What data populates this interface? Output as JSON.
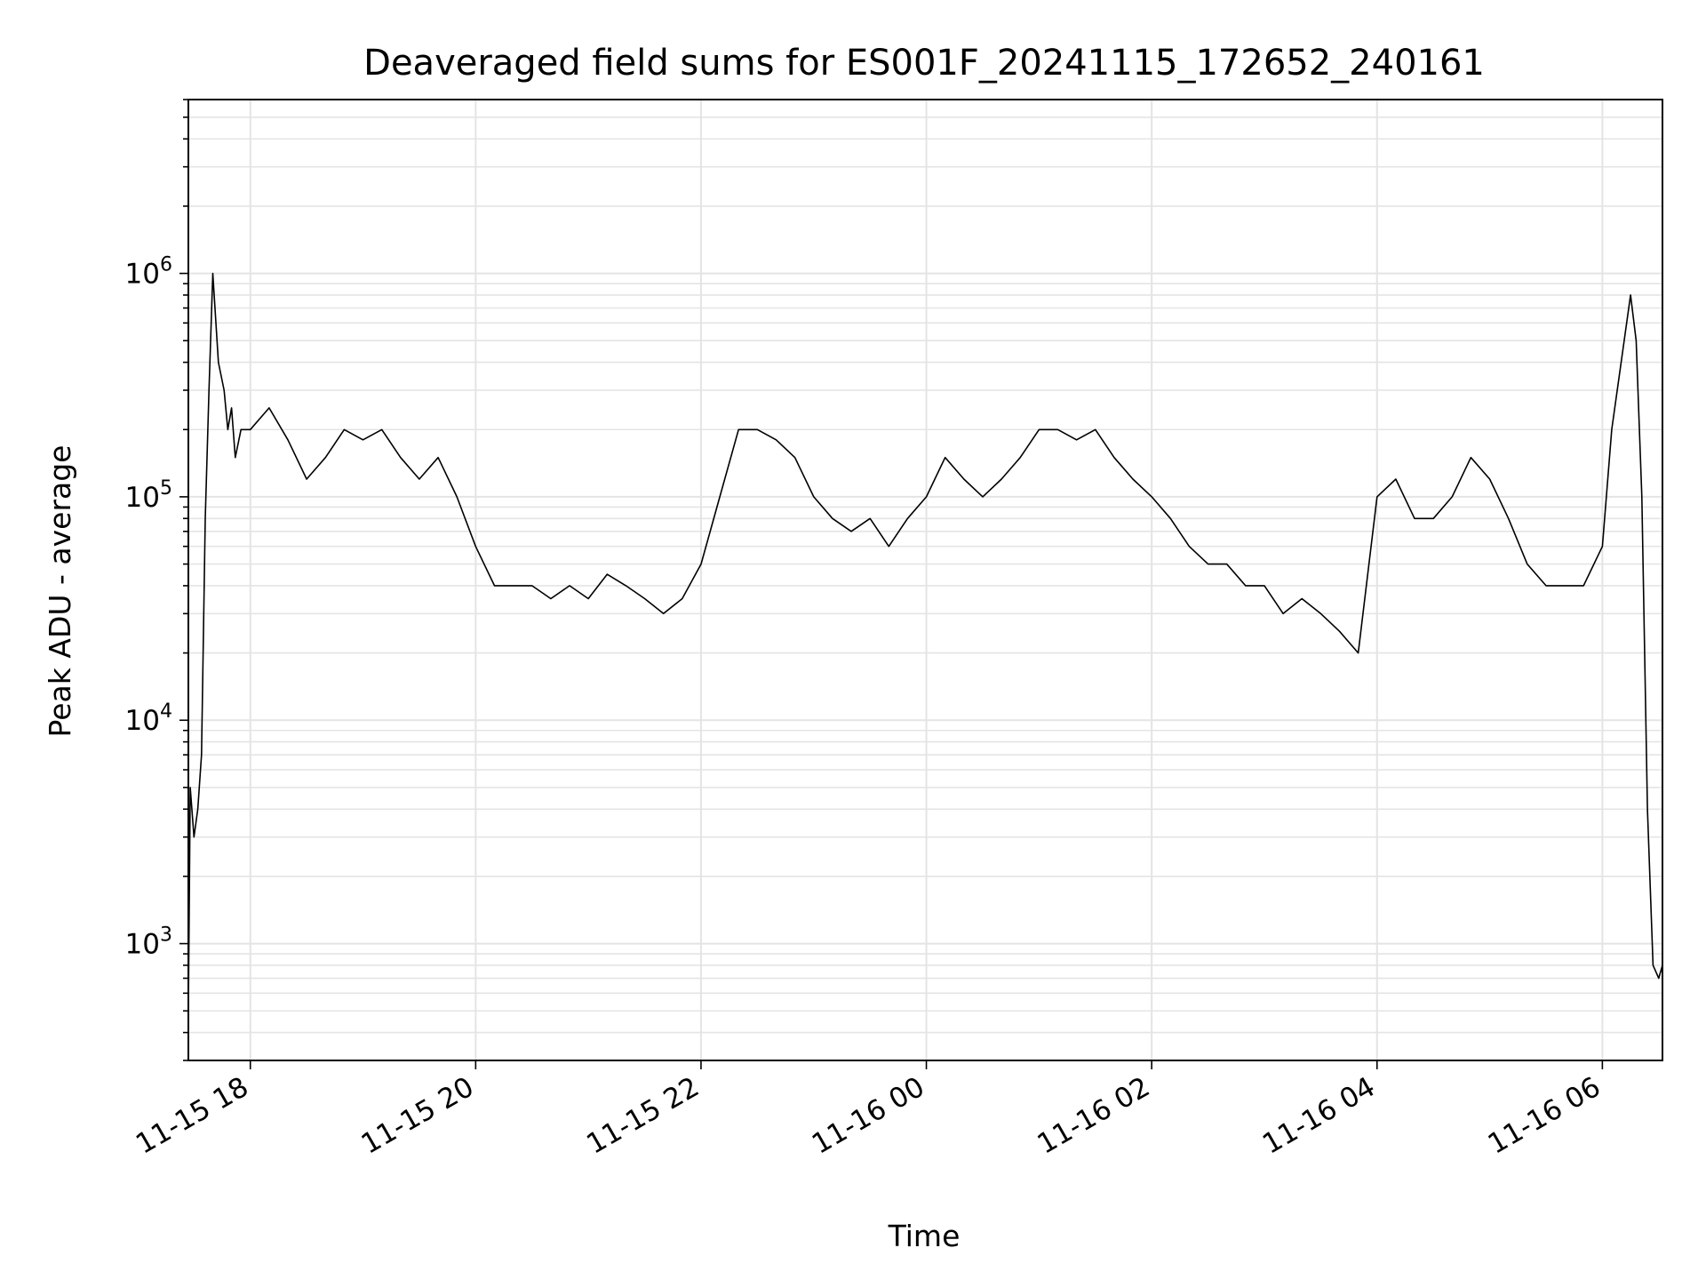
{
  "chart_data": {
    "type": "line",
    "title": "Deaveraged field sums for ES001F_20241115_172652_240161",
    "xlabel": "Time",
    "ylabel": "Peak ADU - average",
    "y_scale": "log",
    "ylim": [
      300,
      6000000
    ],
    "xlim": [
      "2024-11-15 17:27",
      "2024-11-16 06:32"
    ],
    "x_ticks": [
      {
        "t": "2024-11-15 18:00",
        "label": "11-15 18"
      },
      {
        "t": "2024-11-15 20:00",
        "label": "11-15 20"
      },
      {
        "t": "2024-11-15 22:00",
        "label": "11-15 22"
      },
      {
        "t": "2024-11-16 00:00",
        "label": "11-16 00"
      },
      {
        "t": "2024-11-16 02:00",
        "label": "11-16 02"
      },
      {
        "t": "2024-11-16 04:00",
        "label": "11-16 04"
      },
      {
        "t": "2024-11-16 06:00",
        "label": "11-16 06"
      }
    ],
    "y_ticks": [
      {
        "value": 1000,
        "base": "10",
        "exp": "3"
      },
      {
        "value": 10000,
        "base": "10",
        "exp": "4"
      },
      {
        "value": 100000,
        "base": "10",
        "exp": "5"
      },
      {
        "value": 1000000,
        "base": "10",
        "exp": "6"
      }
    ],
    "grid": "both, major and minor",
    "legend": "none",
    "line_color": "#000000",
    "series": [
      {
        "x": [
          "2024-11-15 17:27",
          "2024-11-15 17:28",
          "2024-11-15 17:30",
          "2024-11-15 17:32",
          "2024-11-15 17:34",
          "2024-11-15 17:36",
          "2024-11-15 17:38",
          "2024-11-15 17:40",
          "2024-11-15 17:43",
          "2024-11-15 17:46",
          "2024-11-15 17:48",
          "2024-11-15 17:50",
          "2024-11-15 17:52",
          "2024-11-15 17:55",
          "2024-11-15 18:00",
          "2024-11-15 18:10",
          "2024-11-15 18:20",
          "2024-11-15 18:30",
          "2024-11-15 18:40",
          "2024-11-15 18:50",
          "2024-11-15 19:00",
          "2024-11-15 19:10",
          "2024-11-15 19:20",
          "2024-11-15 19:30",
          "2024-11-15 19:40",
          "2024-11-15 19:50",
          "2024-11-15 20:00",
          "2024-11-15 20:10",
          "2024-11-15 20:20",
          "2024-11-15 20:30",
          "2024-11-15 20:40",
          "2024-11-15 20:50",
          "2024-11-15 21:00",
          "2024-11-15 21:10",
          "2024-11-15 21:20",
          "2024-11-15 21:30",
          "2024-11-15 21:40",
          "2024-11-15 21:50",
          "2024-11-15 22:00",
          "2024-11-15 22:10",
          "2024-11-15 22:20",
          "2024-11-15 22:30",
          "2024-11-15 22:40",
          "2024-11-15 22:50",
          "2024-11-15 23:00",
          "2024-11-15 23:10",
          "2024-11-15 23:20",
          "2024-11-15 23:30",
          "2024-11-15 23:40",
          "2024-11-15 23:50",
          "2024-11-16 00:00",
          "2024-11-16 00:10",
          "2024-11-16 00:20",
          "2024-11-16 00:30",
          "2024-11-16 00:40",
          "2024-11-16 00:50",
          "2024-11-16 01:00",
          "2024-11-16 01:10",
          "2024-11-16 01:20",
          "2024-11-16 01:30",
          "2024-11-16 01:40",
          "2024-11-16 01:50",
          "2024-11-16 02:00",
          "2024-11-16 02:10",
          "2024-11-16 02:20",
          "2024-11-16 02:30",
          "2024-11-16 02:40",
          "2024-11-16 02:50",
          "2024-11-16 03:00",
          "2024-11-16 03:10",
          "2024-11-16 03:20",
          "2024-11-16 03:30",
          "2024-11-16 03:40",
          "2024-11-16 03:50",
          "2024-11-16 04:00",
          "2024-11-16 04:10",
          "2024-11-16 04:20",
          "2024-11-16 04:30",
          "2024-11-16 04:40",
          "2024-11-16 04:50",
          "2024-11-16 05:00",
          "2024-11-16 05:10",
          "2024-11-16 05:20",
          "2024-11-16 05:30",
          "2024-11-16 05:40",
          "2024-11-16 05:50",
          "2024-11-16 06:00",
          "2024-11-16 06:05",
          "2024-11-16 06:10",
          "2024-11-16 06:15",
          "2024-11-16 06:18",
          "2024-11-16 06:21",
          "2024-11-16 06:24",
          "2024-11-16 06:27",
          "2024-11-16 06:30",
          "2024-11-16 06:32"
        ],
        "y": [
          500,
          5000,
          3000,
          4000,
          7000,
          80000,
          300000,
          1000000,
          400000,
          300000,
          200000,
          250000,
          150000,
          200000,
          200000,
          250000,
          180000,
          120000,
          150000,
          200000,
          180000,
          200000,
          150000,
          120000,
          150000,
          100000,
          60000,
          40000,
          40000,
          40000,
          35000,
          40000,
          35000,
          45000,
          40000,
          35000,
          30000,
          35000,
          50000,
          100000,
          200000,
          200000,
          180000,
          150000,
          100000,
          80000,
          70000,
          80000,
          60000,
          80000,
          100000,
          150000,
          120000,
          100000,
          120000,
          150000,
          200000,
          200000,
          180000,
          200000,
          150000,
          120000,
          100000,
          80000,
          60000,
          50000,
          50000,
          40000,
          40000,
          30000,
          35000,
          30000,
          25000,
          20000,
          100000,
          120000,
          80000,
          80000,
          100000,
          150000,
          120000,
          80000,
          50000,
          40000,
          40000,
          40000,
          60000,
          200000,
          400000,
          800000,
          500000,
          100000,
          4000,
          800,
          700,
          800
        ]
      }
    ]
  }
}
